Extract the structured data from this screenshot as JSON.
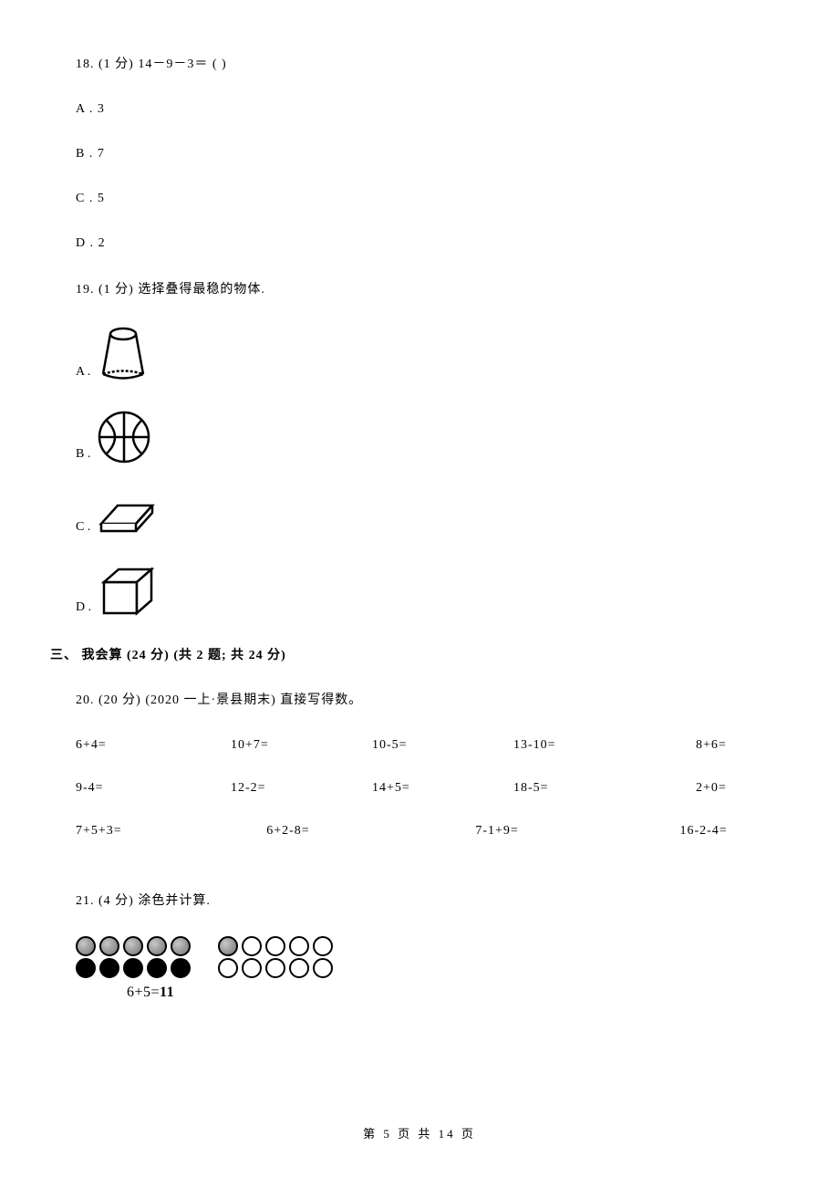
{
  "q18": {
    "text": "18.  (1 分)  14－9－3＝  (      )",
    "options": {
      "A": "A  .  3",
      "B": "B  .  7",
      "C": "C  .  5",
      "D": "D  .  2"
    }
  },
  "q19": {
    "text": "19.  (1 分)  选择叠得最稳的物体.",
    "options": {
      "A": "A  .",
      "B": "B  .",
      "C": "C  .",
      "D": "D  ."
    }
  },
  "section3": {
    "title": "三、 我会算 (24 分)  (共 2 题; 共 24 分)"
  },
  "q20": {
    "text": "20.  (20 分)  (2020 一上·景县期末)  直接写得数。",
    "calc": {
      "row1": [
        "6+4=",
        "10+7=",
        "10-5=",
        "13-10=",
        "8+6="
      ],
      "row2": [
        "9-4=",
        "12-2=",
        "14+5=",
        "18-5=",
        "2+0="
      ],
      "row3": [
        "7+5+3=",
        "6+2-8=",
        "7-1+9=",
        "16-2-4="
      ]
    }
  },
  "q21": {
    "text": "21.  (4 分)  涂色并计算.",
    "caption": "6+5=11"
  },
  "footer": "第 5 页 共 14 页"
}
